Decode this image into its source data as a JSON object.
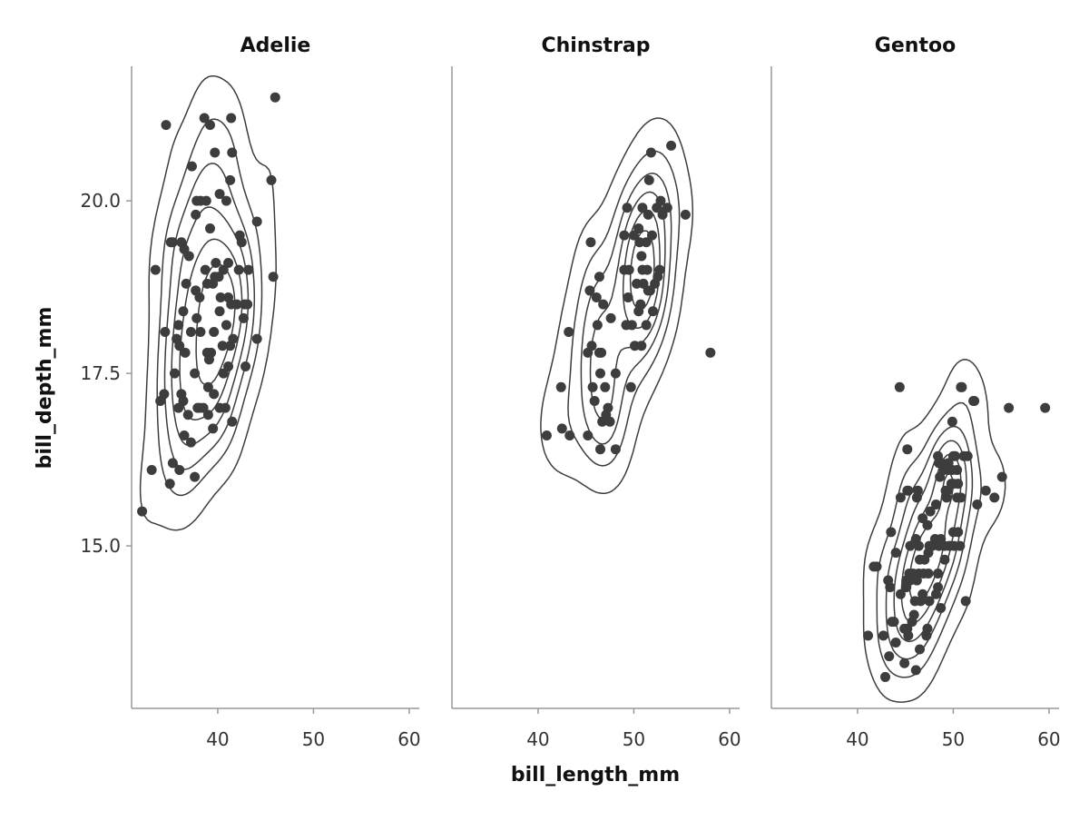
{
  "chart_data": {
    "type": "scatter",
    "overlay": "density-contour",
    "xlabel": "bill_length_mm",
    "ylabel": "bill_depth_mm",
    "xlim": [
      31.0,
      61.05
    ],
    "ylim": [
      12.645,
      21.95
    ],
    "xticks": [
      40,
      50,
      60
    ],
    "xtick_labels": [
      "40",
      "50",
      "60"
    ],
    "yticks": [
      15.0,
      17.5,
      20.0
    ],
    "ytick_labels": [
      "15.0",
      "17.5",
      "20.0"
    ],
    "grid": false,
    "color": "#3d3d3d",
    "axis_color": "#999999",
    "panels": [
      {
        "title": "Adelie",
        "points": [
          [
            46.0,
            21.5
          ],
          [
            34.6,
            21.1
          ],
          [
            38.6,
            21.2
          ],
          [
            41.4,
            21.2
          ],
          [
            39.2,
            21.1
          ],
          [
            39.7,
            20.7
          ],
          [
            41.5,
            20.7
          ],
          [
            37.3,
            20.5
          ],
          [
            41.3,
            20.3
          ],
          [
            45.6,
            20.3
          ],
          [
            37.8,
            20.0
          ],
          [
            38.2,
            20.0
          ],
          [
            38.8,
            20.0
          ],
          [
            40.2,
            20.1
          ],
          [
            40.9,
            20.0
          ],
          [
            44.1,
            19.7
          ],
          [
            39.2,
            19.6
          ],
          [
            37.7,
            19.8
          ],
          [
            35.3,
            19.4
          ],
          [
            45.8,
            18.9
          ],
          [
            33.5,
            19.0
          ],
          [
            32.1,
            15.5
          ],
          [
            33.1,
            16.1
          ],
          [
            35.0,
            15.9
          ],
          [
            37.6,
            16.0
          ],
          [
            35.3,
            16.2
          ],
          [
            36.0,
            16.1
          ],
          [
            44.1,
            18.0
          ],
          [
            42.9,
            17.6
          ],
          [
            34.5,
            18.1
          ],
          [
            34.0,
            17.1
          ],
          [
            34.4,
            17.2
          ],
          [
            36.5,
            19.3
          ],
          [
            36.2,
            19.4
          ],
          [
            37.0,
            19.2
          ],
          [
            42.3,
            19.5
          ],
          [
            42.5,
            19.4
          ],
          [
            41.1,
            19.1
          ],
          [
            42.2,
            19.0
          ],
          [
            43.2,
            19.0
          ],
          [
            39.7,
            18.9
          ],
          [
            40.6,
            19.0
          ],
          [
            39.5,
            18.8
          ],
          [
            37.7,
            18.7
          ],
          [
            36.7,
            18.8
          ],
          [
            38.1,
            18.6
          ],
          [
            38.9,
            18.8
          ],
          [
            40.3,
            18.6
          ],
          [
            41.1,
            18.6
          ],
          [
            41.4,
            18.5
          ],
          [
            42.0,
            18.5
          ],
          [
            42.8,
            18.5
          ],
          [
            43.1,
            18.5
          ],
          [
            37.8,
            18.3
          ],
          [
            38.2,
            18.1
          ],
          [
            40.2,
            18.4
          ],
          [
            39.6,
            18.1
          ],
          [
            36.4,
            18.4
          ],
          [
            35.9,
            18.2
          ],
          [
            35.7,
            18.0
          ],
          [
            36.6,
            17.8
          ],
          [
            37.2,
            18.1
          ],
          [
            39.3,
            17.8
          ],
          [
            39.8,
            19.1
          ],
          [
            38.9,
            17.8
          ],
          [
            40.9,
            18.2
          ],
          [
            41.3,
            17.9
          ],
          [
            40.5,
            17.9
          ],
          [
            36.0,
            17.9
          ],
          [
            35.5,
            17.5
          ],
          [
            37.6,
            17.5
          ],
          [
            39.1,
            17.7
          ],
          [
            40.6,
            17.5
          ],
          [
            41.1,
            17.6
          ],
          [
            39.0,
            17.3
          ],
          [
            37.9,
            17.0
          ],
          [
            38.5,
            17.0
          ],
          [
            39.6,
            17.2
          ],
          [
            40.2,
            17.0
          ],
          [
            40.8,
            17.0
          ],
          [
            36.2,
            17.2
          ],
          [
            36.9,
            16.9
          ],
          [
            35.9,
            17.0
          ],
          [
            37.2,
            16.5
          ],
          [
            36.5,
            16.6
          ],
          [
            39.5,
            16.7
          ],
          [
            41.5,
            16.8
          ],
          [
            38.1,
            17.0
          ],
          [
            39.0,
            16.9
          ],
          [
            36.4,
            17.1
          ],
          [
            42.7,
            18.3
          ],
          [
            41.6,
            18.0
          ],
          [
            38.7,
            19.0
          ],
          [
            40.1,
            18.9
          ],
          [
            35.1,
            19.4
          ]
        ]
      },
      {
        "title": "Chinstrap",
        "points": [
          [
            53.9,
            20.8
          ],
          [
            51.8,
            20.7
          ],
          [
            51.6,
            20.3
          ],
          [
            55.4,
            19.8
          ],
          [
            58.0,
            17.8
          ],
          [
            45.5,
            19.4
          ],
          [
            43.2,
            18.1
          ],
          [
            40.9,
            16.6
          ],
          [
            42.4,
            17.3
          ],
          [
            42.5,
            16.7
          ],
          [
            43.3,
            16.6
          ],
          [
            45.2,
            16.6
          ],
          [
            48.1,
            16.4
          ],
          [
            49.7,
            17.3
          ],
          [
            48.1,
            17.5
          ],
          [
            46.4,
            18.9
          ],
          [
            46.1,
            18.6
          ],
          [
            46.8,
            18.5
          ],
          [
            45.7,
            17.3
          ],
          [
            45.9,
            17.1
          ],
          [
            47.3,
            17.0
          ],
          [
            46.4,
            17.8
          ],
          [
            46.6,
            17.8
          ],
          [
            46.2,
            18.2
          ],
          [
            45.4,
            18.7
          ],
          [
            47.0,
            17.3
          ],
          [
            47.6,
            18.3
          ],
          [
            46.7,
            16.8
          ],
          [
            46.5,
            17.5
          ],
          [
            45.6,
            17.9
          ],
          [
            47.1,
            16.9
          ],
          [
            46.5,
            16.4
          ],
          [
            45.2,
            17.8
          ],
          [
            49.0,
            19.5
          ],
          [
            50.9,
            19.9
          ],
          [
            51.5,
            19.8
          ],
          [
            52.4,
            19.9
          ],
          [
            53.0,
            19.8
          ],
          [
            50.8,
            19.2
          ],
          [
            49.3,
            19.9
          ],
          [
            52.8,
            20.0
          ],
          [
            50.0,
            19.5
          ],
          [
            51.3,
            19.4
          ],
          [
            49.0,
            19.0
          ],
          [
            50.3,
            18.8
          ],
          [
            51.7,
            18.7
          ],
          [
            51.0,
            18.8
          ],
          [
            50.9,
            19.0
          ],
          [
            52.0,
            18.4
          ],
          [
            51.3,
            18.2
          ],
          [
            50.5,
            18.4
          ],
          [
            49.4,
            18.6
          ],
          [
            50.7,
            18.5
          ],
          [
            51.5,
            18.7
          ],
          [
            52.5,
            18.9
          ],
          [
            51.4,
            19.0
          ],
          [
            50.1,
            17.9
          ],
          [
            50.8,
            17.9
          ],
          [
            49.8,
            18.2
          ],
          [
            49.5,
            19.0
          ],
          [
            52.2,
            18.8
          ],
          [
            51.9,
            19.5
          ],
          [
            50.5,
            19.6
          ],
          [
            49.2,
            18.2
          ],
          [
            53.5,
            19.9
          ],
          [
            52.7,
            19.0
          ],
          [
            50.6,
            19.4
          ],
          [
            47.5,
            16.8
          ]
        ]
      },
      {
        "title": "Gentoo",
        "points": [
          [
            44.4,
            17.3
          ],
          [
            50.8,
            17.3
          ],
          [
            52.1,
            17.1
          ],
          [
            55.8,
            17.0
          ],
          [
            59.6,
            17.0
          ],
          [
            45.2,
            16.4
          ],
          [
            55.1,
            16.0
          ],
          [
            54.3,
            15.7
          ],
          [
            53.4,
            15.8
          ],
          [
            49.9,
            16.8
          ],
          [
            50.4,
            16.1
          ],
          [
            48.5,
            16.2
          ],
          [
            49.2,
            15.8
          ],
          [
            50.2,
            16.3
          ],
          [
            49.0,
            16.1
          ],
          [
            48.4,
            16.3
          ],
          [
            51.1,
            16.3
          ],
          [
            50.5,
            15.9
          ],
          [
            49.5,
            16.2
          ],
          [
            49.8,
            15.9
          ],
          [
            46.2,
            15.7
          ],
          [
            45.3,
            15.8
          ],
          [
            47.6,
            15.5
          ],
          [
            46.8,
            15.4
          ],
          [
            47.8,
            15.0
          ],
          [
            48.7,
            15.1
          ],
          [
            49.6,
            15.0
          ],
          [
            50.0,
            15.2
          ],
          [
            50.5,
            15.2
          ],
          [
            49.1,
            14.8
          ],
          [
            48.4,
            14.6
          ],
          [
            47.3,
            15.3
          ],
          [
            45.5,
            15.0
          ],
          [
            44.5,
            15.7
          ],
          [
            44.0,
            14.9
          ],
          [
            43.2,
            14.5
          ],
          [
            42.0,
            14.7
          ],
          [
            43.3,
            13.4
          ],
          [
            41.7,
            14.7
          ],
          [
            42.7,
            13.7
          ],
          [
            43.5,
            15.2
          ],
          [
            44.9,
            13.8
          ],
          [
            45.1,
            14.5
          ],
          [
            45.8,
            14.6
          ],
          [
            46.1,
            13.2
          ],
          [
            46.5,
            13.5
          ],
          [
            46.4,
            14.6
          ],
          [
            46.9,
            14.6
          ],
          [
            47.2,
            13.7
          ],
          [
            46.3,
            15.8
          ],
          [
            47.5,
            14.2
          ],
          [
            46.8,
            14.3
          ],
          [
            46.1,
            15.1
          ],
          [
            48.1,
            15.1
          ],
          [
            48.7,
            14.1
          ],
          [
            49.5,
            16.1
          ],
          [
            50.1,
            15.0
          ],
          [
            50.4,
            15.7
          ],
          [
            51.3,
            14.2
          ],
          [
            52.5,
            15.6
          ],
          [
            50.0,
            16.3
          ],
          [
            49.3,
            15.7
          ],
          [
            48.2,
            14.3
          ],
          [
            45.7,
            13.9
          ],
          [
            42.9,
            13.1
          ],
          [
            41.1,
            13.7
          ],
          [
            45.2,
            13.8
          ],
          [
            44.0,
            13.6
          ],
          [
            43.6,
            13.9
          ],
          [
            47.4,
            14.6
          ],
          [
            46.2,
            14.5
          ],
          [
            45.3,
            13.7
          ],
          [
            46.6,
            14.2
          ],
          [
            47.0,
            14.8
          ],
          [
            48.5,
            15.0
          ],
          [
            49.9,
            16.1
          ],
          [
            50.7,
            15.0
          ],
          [
            51.5,
            16.3
          ],
          [
            48.6,
            16.0
          ],
          [
            47.7,
            15.0
          ],
          [
            45.5,
            14.5
          ],
          [
            45.1,
            14.4
          ],
          [
            46.5,
            14.8
          ],
          [
            48.4,
            14.4
          ],
          [
            44.9,
            13.3
          ],
          [
            43.4,
            14.4
          ],
          [
            50.8,
            15.7
          ],
          [
            45.4,
            14.6
          ],
          [
            49.6,
            15.0
          ],
          [
            46.0,
            14.2
          ],
          [
            45.9,
            14.0
          ],
          [
            47.5,
            15.0
          ],
          [
            48.8,
            16.2
          ],
          [
            49.1,
            15.0
          ],
          [
            49.4,
            15.8
          ],
          [
            52.2,
            17.1
          ],
          [
            47.3,
            13.8
          ],
          [
            44.5,
            14.3
          ],
          [
            48.2,
            15.6
          ],
          [
            47.4,
            14.9
          ],
          [
            50.9,
            17.3
          ],
          [
            43.8,
            13.9
          ],
          [
            46.4,
            15.0
          ],
          [
            50.0,
            15.9
          ],
          [
            45.2,
            15.8
          ]
        ]
      }
    ]
  }
}
